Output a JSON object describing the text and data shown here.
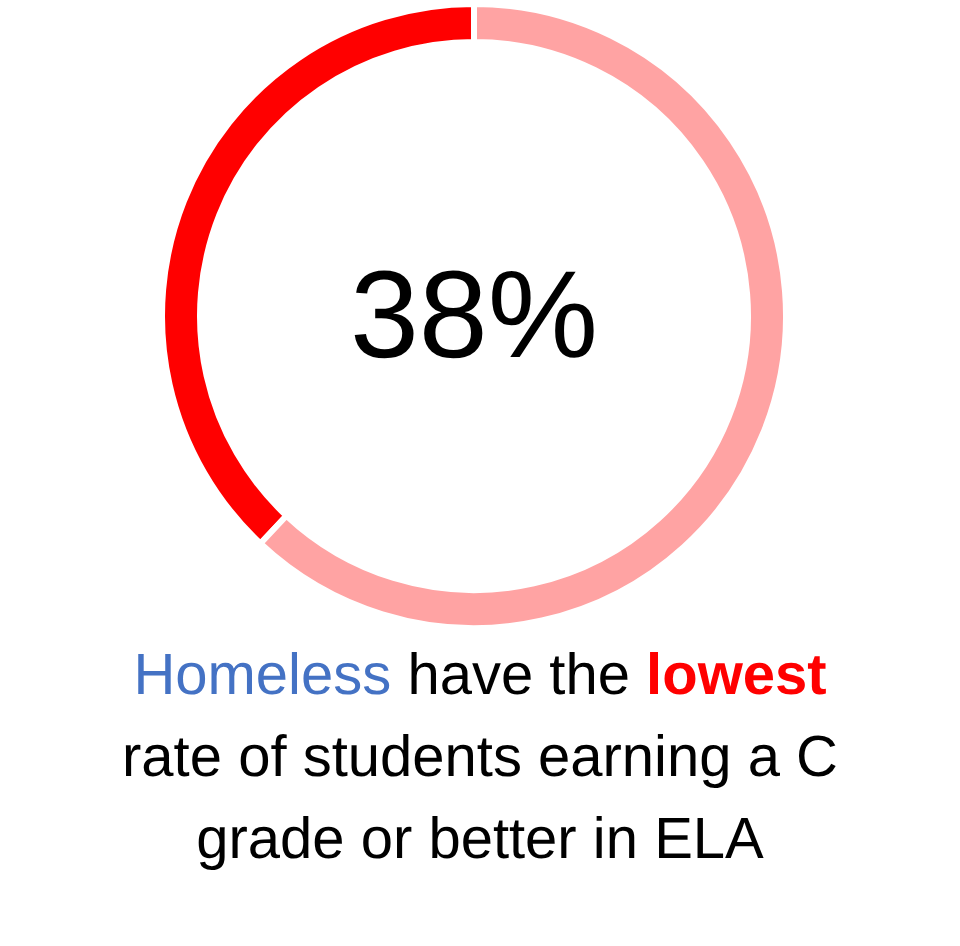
{
  "chart_data": {
    "type": "donut",
    "categories": [
      null,
      null
    ],
    "values": [
      38,
      62
    ],
    "colors": [
      "#ff0000",
      "#ffa3a3"
    ],
    "value_labels": [
      "38%",
      null
    ],
    "annotations": [
      "Homeless have the lowest rate of students earning a C grade or better in ELA"
    ]
  }
}
